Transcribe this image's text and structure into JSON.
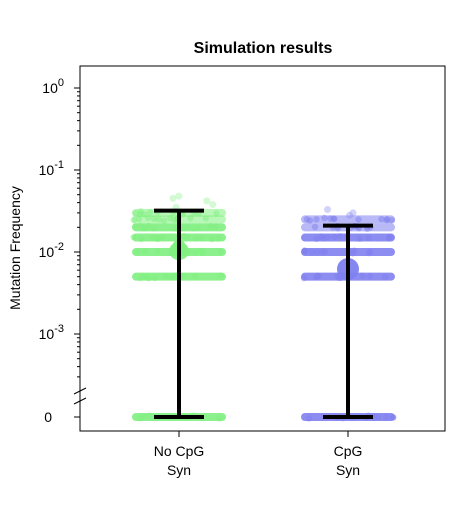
{
  "chart_data": {
    "type": "scatter",
    "title": "Simulation results",
    "ylabel": "Mutation Frequency",
    "xlabel": "",
    "y_scale": "log",
    "ylim": [
      0.00025,
      1.7
    ],
    "y_ticks": [
      {
        "value": 1,
        "base": "10",
        "exp": "0"
      },
      {
        "value": 0.1,
        "base": "10",
        "exp": "-1"
      },
      {
        "value": 0.01,
        "base": "10",
        "exp": "-2"
      },
      {
        "value": 0.001,
        "base": "10",
        "exp": "-3"
      },
      {
        "value": 0,
        "label": "0"
      }
    ],
    "axis_break": true,
    "categories": [
      {
        "line1": "No CpG",
        "line2": "Syn"
      },
      {
        "line1": "CpG",
        "line2": "Syn"
      }
    ],
    "series": [
      {
        "color": "#80f080",
        "levels": [
          0,
          0.005,
          0.01,
          0.015,
          0.02,
          0.025,
          0.03
        ],
        "mean": 0.0115,
        "upper_bar": 0.032,
        "lower_bar": 0,
        "outliers": [
          0.035,
          0.038,
          0.042,
          0.045,
          0.048
        ]
      },
      {
        "color": "#8080f0",
        "levels": [
          0,
          0.005,
          0.01,
          0.015,
          0.02,
          0.025
        ],
        "mean": 0.0062,
        "upper_bar": 0.021,
        "lower_bar": 0,
        "outliers": [
          0.028,
          0.03,
          0.033
        ]
      }
    ]
  }
}
